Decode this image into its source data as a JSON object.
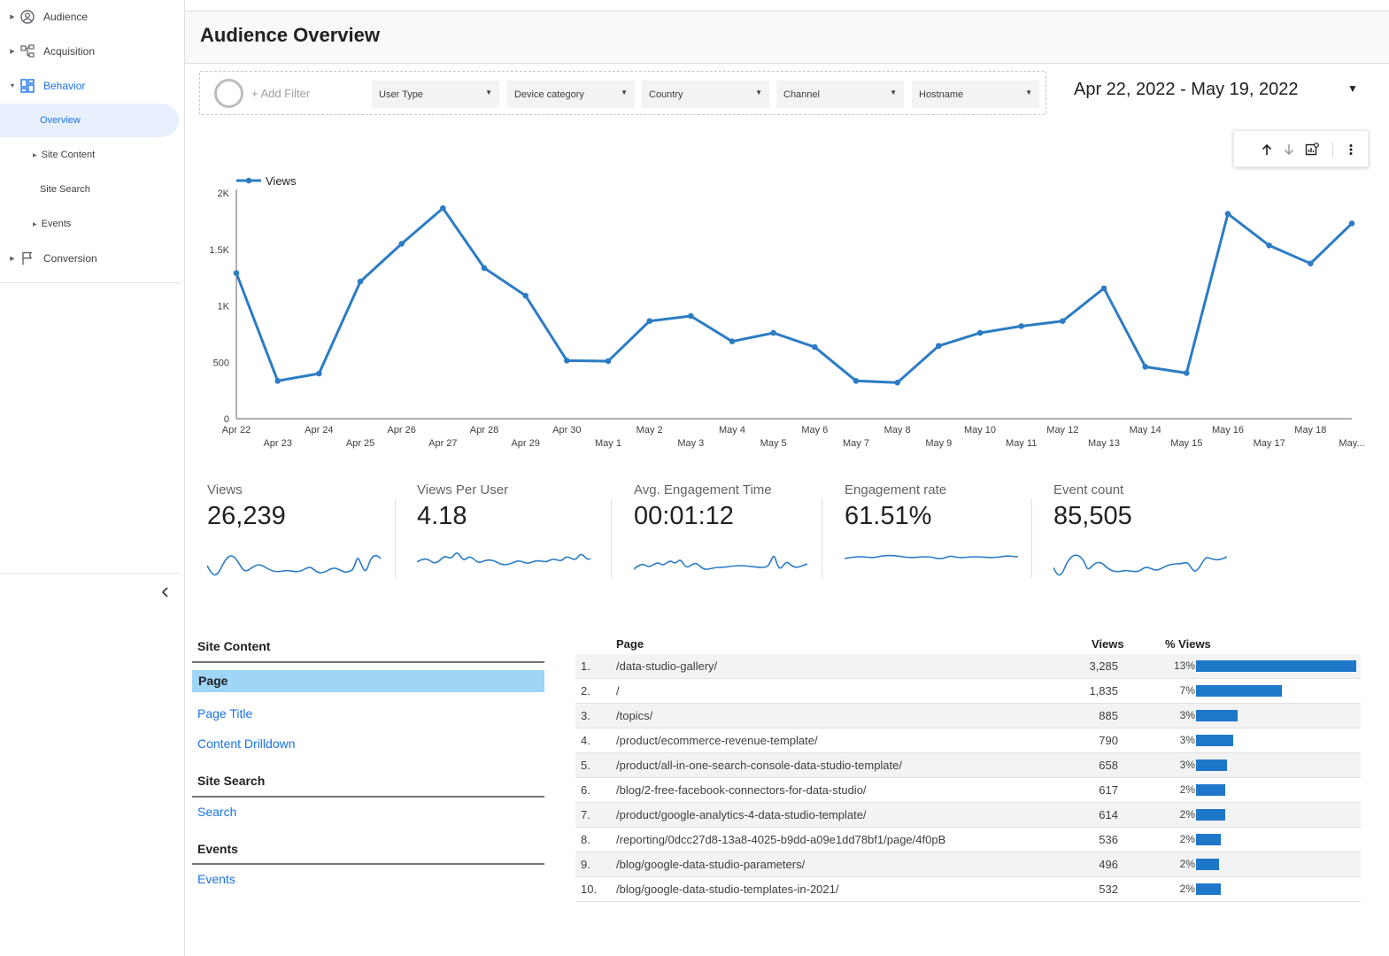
{
  "sidebar": {
    "items": [
      {
        "label": "Audience",
        "icon": "account-circle-icon"
      },
      {
        "label": "Acquisition",
        "icon": "hierarchy-icon"
      },
      {
        "label": "Behavior",
        "icon": "dashboard-icon"
      },
      {
        "label": "Conversion",
        "icon": "flag-icon"
      }
    ],
    "behavior_sub": [
      "Overview",
      "Site Content",
      "Site Search",
      "Events"
    ]
  },
  "header": {
    "title": "Audience Overview"
  },
  "filters": {
    "add_filter": "+ Add Filter",
    "dropdowns": [
      "User Type",
      "Device category",
      "Country",
      "Channel",
      "Hostname"
    ]
  },
  "date_range": "Apr 22, 2022 - May 19, 2022",
  "colors": {
    "accent": "#1a73e8",
    "series": "#2c7cc4",
    "bar": "#1f77c9",
    "selected": "#9fd5f5"
  },
  "chart_data": {
    "type": "line",
    "title": "",
    "xlabel": "",
    "ylabel": "",
    "legend": "top-left",
    "grid": false,
    "ylim": [
      0,
      2000
    ],
    "yticks": [
      "0",
      "500",
      "1K",
      "1.5K",
      "2K"
    ],
    "x": [
      "Apr 22",
      "Apr 23",
      "Apr 24",
      "Apr 25",
      "Apr 26",
      "Apr 27",
      "Apr 28",
      "Apr 29",
      "Apr 30",
      "May 1",
      "May 2",
      "May 3",
      "May 4",
      "May 5",
      "May 6",
      "May 7",
      "May 8",
      "May 9",
      "May 10",
      "May 11",
      "May 12",
      "May 13",
      "May 14",
      "May 15",
      "May 16",
      "May 17",
      "May 18",
      "May..."
    ],
    "series": [
      {
        "name": "Views",
        "values": [
          1290,
          335,
          400,
          1215,
          1550,
          1865,
          1335,
          1090,
          515,
          510,
          865,
          910,
          685,
          760,
          635,
          335,
          320,
          645,
          760,
          820,
          865,
          1155,
          460,
          405,
          1815,
          1535,
          1375,
          1730
        ]
      }
    ]
  },
  "kpis": [
    {
      "label": "Views",
      "value": "26,239"
    },
    {
      "label": "Views Per User",
      "value": "4.18"
    },
    {
      "label": "Avg. Engagement Time",
      "value": "00:01:12"
    },
    {
      "label": "Engagement rate",
      "value": "61.51%"
    },
    {
      "label": "Event count",
      "value": "85,505"
    }
  ],
  "content_nav": {
    "site_content": "Site Content",
    "page": "Page",
    "page_title": "Page Title",
    "content_drilldown": "Content Drilldown",
    "site_search": "Site Search",
    "search": "Search",
    "events_head": "Events",
    "events_link": "Events"
  },
  "table": {
    "headers": {
      "page": "Page",
      "views": "Views",
      "pct": "% Views"
    },
    "rows": [
      {
        "n": "1.",
        "path": "/data-studio-gallery/",
        "views": "3,285",
        "pct": "13%",
        "frac": 0.13
      },
      {
        "n": "2.",
        "path": "/",
        "views": "1,835",
        "pct": "7%",
        "frac": 0.07
      },
      {
        "n": "3.",
        "path": "/topics/",
        "views": "885",
        "pct": "3%",
        "frac": 0.034
      },
      {
        "n": "4.",
        "path": "/product/ecommerce-revenue-template/",
        "views": "790",
        "pct": "3%",
        "frac": 0.03
      },
      {
        "n": "5.",
        "path": "/product/all-in-one-search-console-data-studio-template/",
        "views": "658",
        "pct": "3%",
        "frac": 0.025
      },
      {
        "n": "6.",
        "path": "/blog/2-free-facebook-connectors-for-data-studio/",
        "views": "617",
        "pct": "2%",
        "frac": 0.0235
      },
      {
        "n": "7.",
        "path": "/product/google-analytics-4-data-studio-template/",
        "views": "614",
        "pct": "2%",
        "frac": 0.0234
      },
      {
        "n": "8.",
        "path": "/reporting/0dcc27d8-13a8-4025-b9dd-a09e1dd78bf1/page/4f0pB",
        "views": "536",
        "pct": "2%",
        "frac": 0.0204
      },
      {
        "n": "9.",
        "path": "/blog/google-data-studio-parameters/",
        "views": "496",
        "pct": "2%",
        "frac": 0.0189
      },
      {
        "n": "10.",
        "path": "/blog/google-data-studio-templates-in-2021/",
        "views": "532",
        "pct": "2%",
        "frac": 0.0203
      }
    ]
  }
}
